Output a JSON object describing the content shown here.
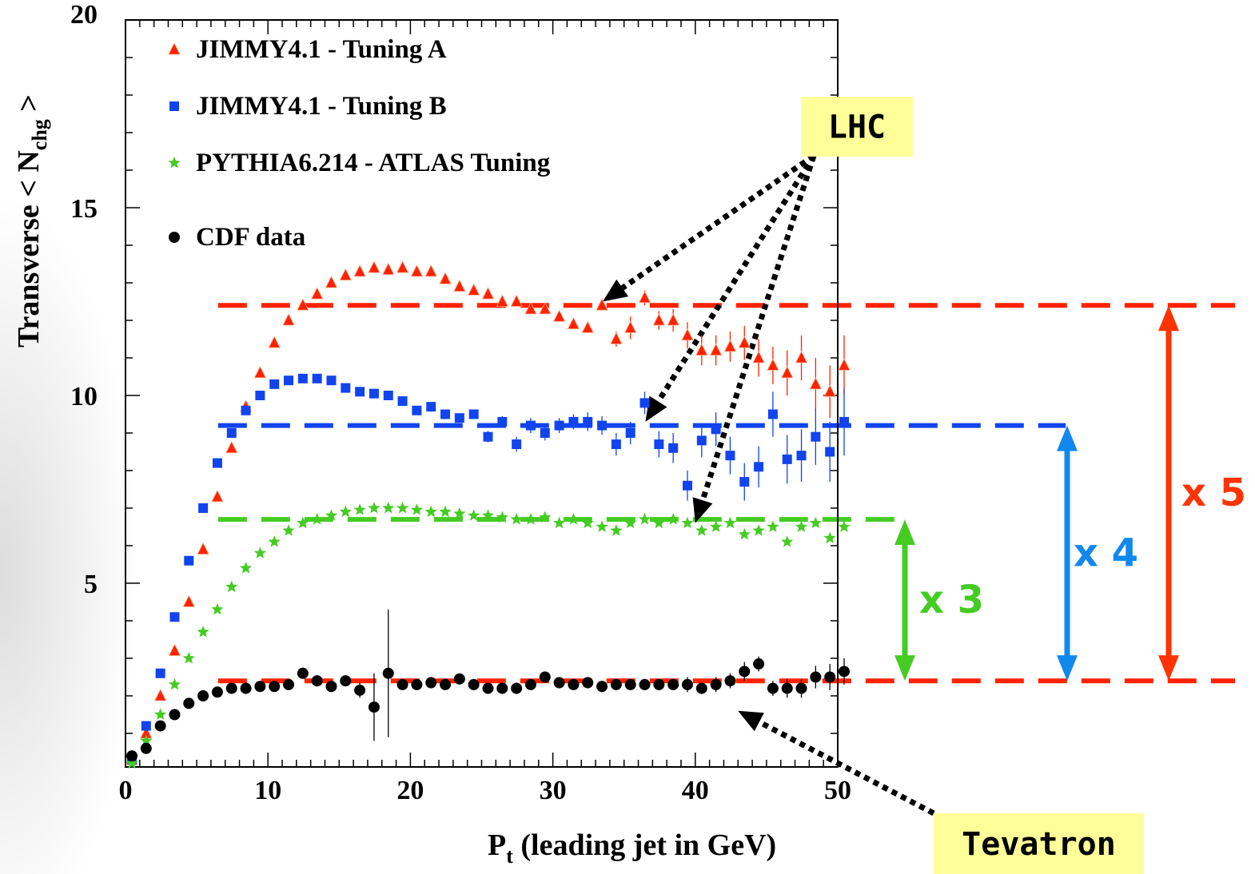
{
  "chart_data": {
    "type": "scatter",
    "title": "",
    "xlabel": "P",
    "xlabel_sub": "t",
    "xlabel_rest": " (leading jet in GeV)",
    "ylabel": "Transverse < N",
    "ylabel_sub": "chg",
    "ylabel_rest": " >",
    "xlim": [
      0,
      50
    ],
    "ylim": [
      0,
      20
    ],
    "x_ticks": [
      0,
      10,
      20,
      30,
      40,
      50
    ],
    "y_ticks": [
      5,
      10,
      15,
      20
    ],
    "legend_placement": "top-left",
    "series": [
      {
        "name": "JIMMY4.1 - Tuning A",
        "color": "#ff2200",
        "marker": "triangle",
        "points": [
          [
            0.5,
            0.3
          ],
          [
            1.5,
            1.0
          ],
          [
            2.5,
            2.0
          ],
          [
            3.5,
            3.2
          ],
          [
            4.5,
            4.5
          ],
          [
            5.5,
            5.9
          ],
          [
            6.5,
            7.3
          ],
          [
            7.5,
            8.6
          ],
          [
            8.5,
            9.7
          ],
          [
            9.5,
            10.6
          ],
          [
            10.5,
            11.4
          ],
          [
            11.5,
            12.0
          ],
          [
            12.5,
            12.4
          ],
          [
            13.5,
            12.7
          ],
          [
            14.5,
            13.0
          ],
          [
            15.5,
            13.2
          ],
          [
            16.5,
            13.3
          ],
          [
            17.5,
            13.4
          ],
          [
            18.5,
            13.35
          ],
          [
            19.5,
            13.4
          ],
          [
            20.5,
            13.3
          ],
          [
            21.5,
            13.3
          ],
          [
            22.5,
            13.1
          ],
          [
            23.5,
            12.9
          ],
          [
            24.5,
            12.8
          ],
          [
            25.5,
            12.7
          ],
          [
            26.5,
            12.5
          ],
          [
            27.5,
            12.5
          ],
          [
            28.5,
            12.3
          ],
          [
            29.5,
            12.3
          ],
          [
            30.5,
            12.1
          ],
          [
            31.5,
            11.9
          ],
          [
            32.5,
            11.8
          ],
          [
            33.5,
            12.4
          ],
          [
            34.5,
            11.5
          ],
          [
            35.5,
            11.8
          ],
          [
            36.5,
            12.6
          ],
          [
            37.5,
            12.0
          ],
          [
            38.5,
            12.0
          ],
          [
            39.5,
            11.6
          ],
          [
            40.5,
            11.2
          ],
          [
            41.5,
            11.2
          ],
          [
            42.5,
            11.3
          ],
          [
            43.5,
            11.4
          ],
          [
            44.5,
            11.0
          ],
          [
            45.5,
            10.8
          ],
          [
            46.5,
            10.6
          ],
          [
            47.5,
            11.0
          ],
          [
            48.5,
            10.3
          ],
          [
            49.5,
            10.1
          ],
          [
            50.5,
            10.8
          ]
        ],
        "errors": [
          0,
          0,
          0,
          0,
          0,
          0,
          0,
          0,
          0,
          0,
          0,
          0,
          0,
          0,
          0,
          0,
          0,
          0,
          0,
          0,
          0,
          0,
          0,
          0,
          0,
          0,
          0,
          0,
          0,
          0,
          0,
          0,
          0,
          0,
          0.2,
          0.3,
          0.2,
          0.25,
          0.3,
          0.35,
          0.4,
          0.4,
          0.4,
          0.45,
          0.5,
          0.5,
          0.6,
          0.6,
          0.7,
          0.7,
          0.8
        ]
      },
      {
        "name": "JIMMY4.1 - Tuning B",
        "color": "#1144ee",
        "marker": "square",
        "points": [
          [
            0.5,
            0.3
          ],
          [
            1.5,
            1.2
          ],
          [
            2.5,
            2.6
          ],
          [
            3.5,
            4.1
          ],
          [
            4.5,
            5.6
          ],
          [
            5.5,
            7.0
          ],
          [
            6.5,
            8.2
          ],
          [
            7.5,
            9.0
          ],
          [
            8.5,
            9.6
          ],
          [
            9.5,
            10.0
          ],
          [
            10.5,
            10.3
          ],
          [
            11.5,
            10.4
          ],
          [
            12.5,
            10.45
          ],
          [
            13.5,
            10.45
          ],
          [
            14.5,
            10.4
          ],
          [
            15.5,
            10.2
          ],
          [
            16.5,
            10.1
          ],
          [
            17.5,
            10.05
          ],
          [
            18.5,
            10.0
          ],
          [
            19.5,
            9.85
          ],
          [
            20.5,
            9.6
          ],
          [
            21.5,
            9.7
          ],
          [
            22.5,
            9.5
          ],
          [
            23.5,
            9.4
          ],
          [
            24.5,
            9.5
          ],
          [
            25.5,
            8.9
          ],
          [
            26.5,
            9.3
          ],
          [
            27.5,
            8.7
          ],
          [
            28.5,
            9.2
          ],
          [
            29.5,
            9.0
          ],
          [
            30.5,
            9.2
          ],
          [
            31.5,
            9.3
          ],
          [
            32.5,
            9.3
          ],
          [
            33.5,
            9.2
          ],
          [
            34.5,
            8.7
          ],
          [
            35.5,
            9.0
          ],
          [
            36.5,
            9.8
          ],
          [
            37.5,
            8.7
          ],
          [
            38.5,
            8.6
          ],
          [
            39.5,
            7.6
          ],
          [
            40.5,
            8.8
          ],
          [
            41.5,
            9.1
          ],
          [
            42.5,
            8.4
          ],
          [
            43.5,
            7.7
          ],
          [
            44.5,
            8.1
          ],
          [
            45.5,
            9.5
          ],
          [
            46.5,
            8.3
          ],
          [
            47.5,
            8.4
          ],
          [
            48.5,
            8.9
          ],
          [
            49.5,
            8.5
          ],
          [
            50.5,
            9.3
          ]
        ],
        "errors": [
          0,
          0,
          0,
          0,
          0,
          0,
          0,
          0,
          0,
          0,
          0,
          0,
          0,
          0,
          0,
          0,
          0,
          0,
          0,
          0,
          0,
          0,
          0,
          0,
          0,
          0.15,
          0.15,
          0.2,
          0.2,
          0.2,
          0.2,
          0.2,
          0.25,
          0.25,
          0.3,
          0.3,
          0.3,
          0.35,
          0.4,
          0.4,
          0.45,
          0.45,
          0.5,
          0.5,
          0.55,
          0.6,
          0.65,
          0.7,
          0.75,
          0.8,
          0.9
        ]
      },
      {
        "name": "PYTHIA6.214 - ATLAS Tuning",
        "color": "#44cc22",
        "marker": "star",
        "points": [
          [
            0.5,
            0.2
          ],
          [
            1.5,
            0.8
          ],
          [
            2.5,
            1.5
          ],
          [
            3.5,
            2.3
          ],
          [
            4.5,
            3.0
          ],
          [
            5.5,
            3.7
          ],
          [
            6.5,
            4.3
          ],
          [
            7.5,
            4.9
          ],
          [
            8.5,
            5.4
          ],
          [
            9.5,
            5.8
          ],
          [
            10.5,
            6.1
          ],
          [
            11.5,
            6.4
          ],
          [
            12.5,
            6.6
          ],
          [
            13.5,
            6.7
          ],
          [
            14.5,
            6.8
          ],
          [
            15.5,
            6.9
          ],
          [
            16.5,
            6.95
          ],
          [
            17.5,
            7.0
          ],
          [
            18.5,
            7.0
          ],
          [
            19.5,
            7.0
          ],
          [
            20.5,
            6.95
          ],
          [
            21.5,
            6.9
          ],
          [
            22.5,
            6.9
          ],
          [
            23.5,
            6.85
          ],
          [
            24.5,
            6.8
          ],
          [
            25.5,
            6.8
          ],
          [
            26.5,
            6.75
          ],
          [
            27.5,
            6.7
          ],
          [
            28.5,
            6.7
          ],
          [
            29.5,
            6.75
          ],
          [
            30.5,
            6.6
          ],
          [
            31.5,
            6.7
          ],
          [
            32.5,
            6.6
          ],
          [
            33.5,
            6.5
          ],
          [
            34.5,
            6.4
          ],
          [
            35.5,
            6.6
          ],
          [
            36.5,
            6.7
          ],
          [
            37.5,
            6.6
          ],
          [
            38.5,
            6.7
          ],
          [
            39.5,
            6.6
          ],
          [
            40.5,
            6.4
          ],
          [
            41.5,
            6.5
          ],
          [
            42.5,
            6.6
          ],
          [
            43.5,
            6.3
          ],
          [
            44.5,
            6.4
          ],
          [
            45.5,
            6.5
          ],
          [
            46.5,
            6.1
          ],
          [
            47.5,
            6.5
          ],
          [
            48.5,
            6.6
          ],
          [
            49.5,
            6.2
          ],
          [
            50.5,
            6.5
          ]
        ],
        "errors": []
      },
      {
        "name": "CDF data",
        "color": "#000000",
        "marker": "circle",
        "points": [
          [
            0.5,
            0.4
          ],
          [
            1.5,
            0.6
          ],
          [
            2.5,
            1.2
          ],
          [
            3.5,
            1.5
          ],
          [
            4.5,
            1.8
          ],
          [
            5.5,
            2.0
          ],
          [
            6.5,
            2.1
          ],
          [
            7.5,
            2.2
          ],
          [
            8.5,
            2.2
          ],
          [
            9.5,
            2.25
          ],
          [
            10.5,
            2.25
          ],
          [
            11.5,
            2.3
          ],
          [
            12.5,
            2.6
          ],
          [
            13.5,
            2.4
          ],
          [
            14.5,
            2.25
          ],
          [
            15.5,
            2.4
          ],
          [
            16.5,
            2.15
          ],
          [
            17.5,
            1.7
          ],
          [
            18.5,
            2.6
          ],
          [
            19.5,
            2.3
          ],
          [
            20.5,
            2.3
          ],
          [
            21.5,
            2.35
          ],
          [
            22.5,
            2.3
          ],
          [
            23.5,
            2.45
          ],
          [
            24.5,
            2.3
          ],
          [
            25.5,
            2.2
          ],
          [
            26.5,
            2.2
          ],
          [
            27.5,
            2.2
          ],
          [
            28.5,
            2.3
          ],
          [
            29.5,
            2.5
          ],
          [
            30.5,
            2.35
          ],
          [
            31.5,
            2.3
          ],
          [
            32.5,
            2.35
          ],
          [
            33.5,
            2.25
          ],
          [
            34.5,
            2.3
          ],
          [
            35.5,
            2.3
          ],
          [
            36.5,
            2.3
          ],
          [
            37.5,
            2.3
          ],
          [
            38.5,
            2.3
          ],
          [
            39.5,
            2.3
          ],
          [
            40.5,
            2.2
          ],
          [
            41.5,
            2.3
          ],
          [
            42.5,
            2.4
          ],
          [
            43.5,
            2.65
          ],
          [
            44.5,
            2.85
          ],
          [
            45.5,
            2.2
          ],
          [
            46.5,
            2.2
          ],
          [
            47.5,
            2.2
          ],
          [
            48.5,
            2.5
          ],
          [
            49.5,
            2.5
          ],
          [
            50.5,
            2.65
          ]
        ],
        "errors": [
          0,
          0,
          0,
          0,
          0,
          0,
          0,
          0,
          0,
          0,
          0,
          0,
          0.1,
          0.15,
          0.1,
          0.1,
          0.2,
          0.9,
          1.7,
          0.15,
          0.15,
          0.15,
          0.15,
          0.15,
          0.15,
          0.15,
          0.15,
          0.15,
          0.15,
          0.15,
          0.15,
          0.15,
          0.15,
          0.15,
          0.15,
          0.15,
          0.15,
          0.15,
          0.15,
          0.2,
          0.15,
          0.2,
          0.2,
          0.25,
          0.2,
          0.2,
          0.25,
          0.25,
          0.3,
          0.35,
          0.35
        ]
      }
    ],
    "reference_lines": [
      {
        "y": 12.4,
        "color": "#ff2200",
        "x_from": 6.5,
        "x_to": 78
      },
      {
        "y": 9.2,
        "color": "#1144ee",
        "x_from": 6.5,
        "x_to": 66
      },
      {
        "y": 6.7,
        "color": "#44cc22",
        "x_from": 6.5,
        "x_to": 54
      },
      {
        "y": 2.4,
        "color": "#ff2200",
        "x_from": 6.5,
        "x_to": 78
      }
    ],
    "ratio_annotations": [
      {
        "label": "x 3",
        "color": "#44cc22",
        "x": 54.3,
        "y_from": 2.4,
        "y_to": 6.7
      },
      {
        "label": "x 4",
        "color": "#1188ee",
        "x": 66.3,
        "y_from": 2.4,
        "y_to": 9.2
      },
      {
        "label": "x 5",
        "color": "#ff3300",
        "x": 72.6,
        "y_from": 2.4,
        "y_to": 12.4
      }
    ],
    "callouts": [
      {
        "label": "LHC",
        "color": "#ffff99",
        "targets": [
          [
            33.5,
            12.5
          ],
          [
            36.5,
            9.3
          ],
          [
            40.0,
            6.6
          ]
        ]
      },
      {
        "label": "Tevatron",
        "color": "#ffff99",
        "targets": [
          [
            43.0,
            1.6
          ]
        ]
      }
    ]
  }
}
